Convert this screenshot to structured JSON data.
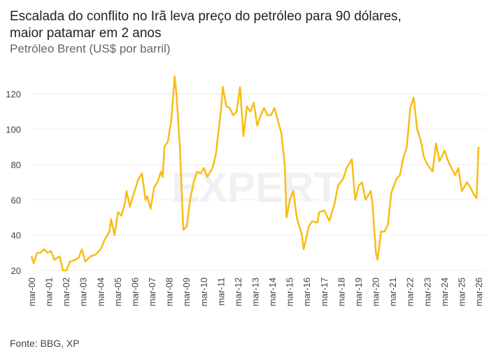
{
  "title": "Escalada do conflito no Irã leva preço do petróleo para 90 dólares, maior patamar em 2 anos",
  "subtitle": "Petróleo Brent (US$ por barril)",
  "source": "Fonte: BBG, XP",
  "watermark": "EXPERT XP",
  "colors": {
    "line": "#F8BC14",
    "grid": "#eeeeee"
  },
  "chart_data": {
    "type": "line",
    "title": "Escalada do conflito no Irã leva preço do petróleo para 90 dólares, maior patamar em 2 anos",
    "ylabel": "Petróleo Brent (US$ por barril)",
    "xlabel": "",
    "ylim": [
      20,
      130
    ],
    "xlim": [
      2000.17,
      2026.17
    ],
    "yticks": [
      20,
      40,
      60,
      80,
      100,
      120
    ],
    "xtick_labels": [
      "mar-00",
      "mar-01",
      "mar-02",
      "mar-03",
      "mar-04",
      "mar-05",
      "mar-06",
      "mar-07",
      "mar-08",
      "mar-09",
      "mar-10",
      "mar-11",
      "mar-12",
      "mar-13",
      "mar-14",
      "mar-15",
      "mar-16",
      "mar-17",
      "mar-18",
      "mar-19",
      "mar-20",
      "mar-21",
      "mar-22",
      "mar-23",
      "mar-24",
      "mar-25",
      "mar-26"
    ],
    "grid": true,
    "series": [
      {
        "name": "Brent",
        "x": [
          2000.17,
          2000.3,
          2000.5,
          2000.7,
          2000.9,
          2001.1,
          2001.3,
          2001.5,
          2001.8,
          2002.0,
          2002.2,
          2002.4,
          2002.7,
          2002.9,
          2003.1,
          2003.3,
          2003.6,
          2003.9,
          2004.2,
          2004.4,
          2004.7,
          2004.8,
          2005.0,
          2005.2,
          2005.4,
          2005.6,
          2005.7,
          2005.9,
          2006.1,
          2006.4,
          2006.6,
          2006.8,
          2006.9,
          2007.1,
          2007.3,
          2007.5,
          2007.7,
          2007.8,
          2007.9,
          2008.1,
          2008.3,
          2008.5,
          2008.6,
          2008.8,
          2009.0,
          2009.2,
          2009.4,
          2009.6,
          2009.8,
          2010.0,
          2010.2,
          2010.4,
          2010.7,
          2010.9,
          2011.0,
          2011.2,
          2011.3,
          2011.5,
          2011.7,
          2011.9,
          2012.1,
          2012.3,
          2012.5,
          2012.7,
          2012.9,
          2013.1,
          2013.3,
          2013.5,
          2013.7,
          2013.9,
          2014.1,
          2014.3,
          2014.5,
          2014.7,
          2014.9,
          2015.0,
          2015.2,
          2015.4,
          2015.6,
          2015.9,
          2016.0,
          2016.3,
          2016.5,
          2016.8,
          2016.9,
          2017.2,
          2017.5,
          2017.8,
          2018.0,
          2018.3,
          2018.5,
          2018.8,
          2019.0,
          2019.2,
          2019.4,
          2019.6,
          2019.9,
          2020.0,
          2020.2,
          2020.3,
          2020.5,
          2020.7,
          2020.9,
          2021.1,
          2021.4,
          2021.6,
          2021.8,
          2022.0,
          2022.2,
          2022.4,
          2022.6,
          2022.8,
          2023.0,
          2023.2,
          2023.5,
          2023.7,
          2023.9,
          2024.2,
          2024.4,
          2024.6,
          2024.8,
          2025.0,
          2025.2,
          2025.5,
          2025.7,
          2025.9,
          2026.05,
          2026.1,
          2026.17
        ],
        "values": [
          28,
          24,
          30,
          30,
          32,
          30,
          31,
          26,
          28,
          20,
          20,
          25,
          26,
          27,
          32,
          25,
          28,
          29,
          32,
          37,
          42,
          49,
          40,
          53,
          51,
          58,
          65,
          56,
          63,
          72,
          75,
          60,
          62,
          55,
          67,
          70,
          76,
          73,
          90,
          93,
          105,
          132,
          120,
          90,
          43,
          45,
          60,
          70,
          76,
          75,
          78,
          73,
          78,
          86,
          95,
          112,
          124,
          113,
          112,
          108,
          110,
          124,
          96,
          113,
          110,
          115,
          102,
          108,
          112,
          108,
          108,
          112,
          105,
          98,
          80,
          50,
          60,
          65,
          50,
          40,
          32,
          45,
          48,
          47,
          53,
          54,
          48,
          58,
          68,
          72,
          78,
          83,
          60,
          68,
          70,
          60,
          65,
          58,
          30,
          26,
          42,
          42,
          46,
          64,
          72,
          74,
          84,
          90,
          112,
          118,
          100,
          94,
          84,
          80,
          76,
          92,
          82,
          88,
          82,
          78,
          74,
          78,
          65,
          70,
          67,
          63,
          61,
          72,
          90
        ]
      }
    ]
  }
}
